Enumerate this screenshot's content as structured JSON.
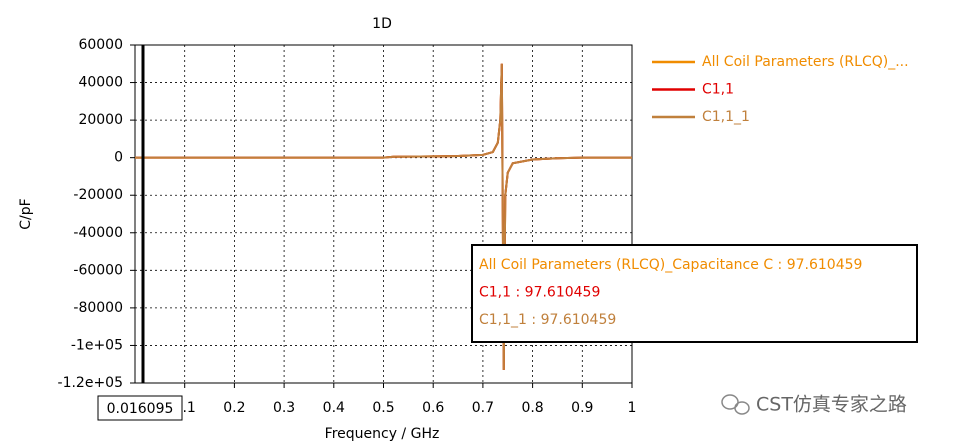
{
  "chart_data": {
    "type": "line",
    "title": "1D",
    "xlabel": "Frequency / GHz",
    "ylabel": "C/pF",
    "x": [
      0,
      0.1,
      0.2,
      0.3,
      0.4,
      0.5,
      0.52,
      0.6,
      0.65,
      0.7,
      0.72,
      0.73,
      0.735,
      0.738,
      0.74,
      0.742,
      0.745,
      0.75,
      0.76,
      0.8,
      0.85,
      0.9,
      1
    ],
    "series": [
      {
        "name": "All Coil Parameters (RLCQ)_...",
        "color": "#f08c00",
        "values": [
          0,
          0,
          0,
          0,
          0,
          50,
          500,
          700,
          900,
          1500,
          3000,
          8000,
          20000,
          50000,
          -30000,
          -113000,
          -20000,
          -8000,
          -3000,
          -1000,
          -300,
          0,
          0
        ]
      },
      {
        "name": "C1,1",
        "color": "#e00000",
        "values": [
          0,
          0,
          0,
          0,
          0,
          50,
          500,
          700,
          900,
          1500,
          3000,
          8000,
          20000,
          50000,
          -30000,
          -113000,
          -20000,
          -8000,
          -3000,
          -1000,
          -300,
          0,
          0
        ]
      },
      {
        "name": "C1,1_1",
        "color": "#c0803c",
        "values": [
          0,
          0,
          0,
          0,
          0,
          50,
          500,
          700,
          900,
          1500,
          3000,
          8000,
          20000,
          50000,
          -30000,
          -113000,
          -20000,
          -8000,
          -3000,
          -1000,
          -300,
          0,
          0
        ]
      }
    ],
    "xlim": [
      0,
      1
    ],
    "xticks": [
      0.1,
      0.2,
      0.3,
      0.4,
      0.5,
      0.6,
      0.7,
      0.8,
      0.9,
      1
    ],
    "ylim": [
      -120000,
      60000
    ],
    "yticks": [
      {
        "value": -120000,
        "label": "-1.2e+05"
      },
      {
        "value": -100000,
        "label": "-1e+05"
      },
      -80000,
      -60000,
      -40000,
      -20000,
      0,
      20000,
      40000,
      60000
    ],
    "grid": true,
    "legend": "right",
    "marker": 0.016095,
    "tooltip": [
      "All Coil Parameters (RLCQ)_Capacitance C : 97.610459",
      "C1,1 : 97.610459",
      "C1,1_1 : 97.610459"
    ],
    "watermark": "CST仿真专家之路"
  }
}
